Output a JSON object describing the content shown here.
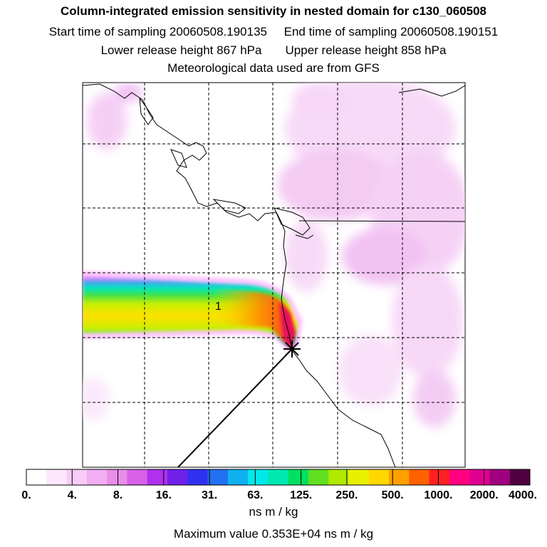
{
  "title": "Column-integrated emission sensitivity in nested domain for c130_060508",
  "sampling": {
    "start": "Start time of sampling 20060508.190135",
    "end": "End time of sampling 20060508.190151"
  },
  "release": {
    "lower": "Lower release height  867 hPa",
    "upper": "Upper release height  858 hPa"
  },
  "met_note": "Meteorological data used are from GFS",
  "map_label": "1",
  "unit": "ns m / kg",
  "maximum": "Maximum value  0.353E+04 ns m / kg",
  "colors": {
    "scale": [
      "#ffffff",
      "#fde8fd",
      "#f8ccf8",
      "#f2aef2",
      "#e88de8",
      "#d860e8",
      "#b030f0",
      "#7020e8",
      "#3030f0",
      "#2070f0",
      "#10b0f0",
      "#00e8e8",
      "#00e8b0",
      "#00e060",
      "#60e020",
      "#b0e800",
      "#e8f000",
      "#ffd800",
      "#ffa000",
      "#ff6000",
      "#ff2020",
      "#ff0080",
      "#e00090",
      "#a00080",
      "#500040"
    ]
  },
  "chart_data": {
    "type": "heatmap",
    "title": "Column-integrated emission sensitivity in nested domain for c130_060508",
    "colorbar": {
      "tick_labels": [
        "0.",
        "4.",
        "8.",
        "16.",
        "31.",
        "63.",
        "125.",
        "250.",
        "500.",
        "1000.",
        "2000.",
        "4000."
      ],
      "unit": "ns m / kg"
    },
    "maximum_value": 3530,
    "maximum_label": "Maximum value  0.353E+04 ns m / kg",
    "grid": true,
    "label_marker": "1"
  }
}
